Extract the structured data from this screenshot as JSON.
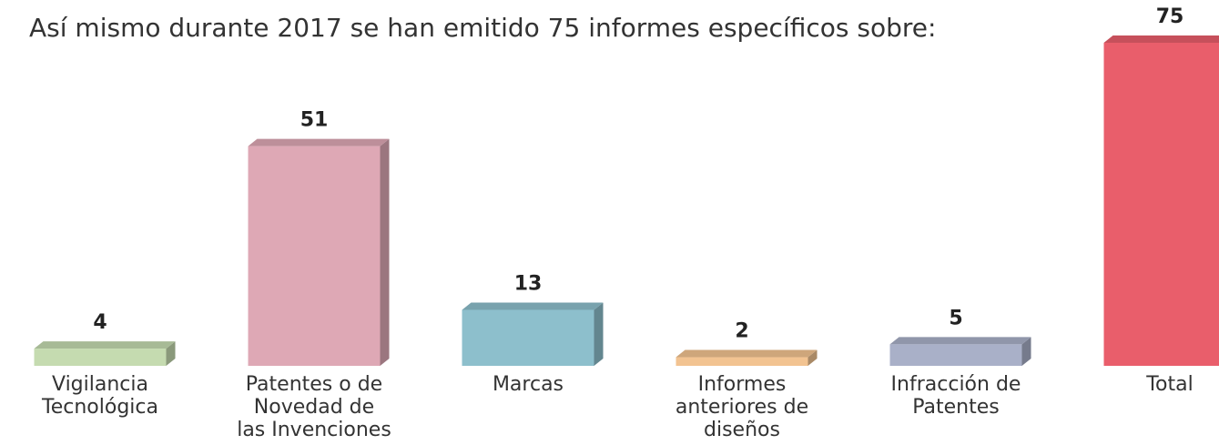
{
  "chart_data": {
    "type": "bar3d",
    "title": "Así mismo durante 2017 se han emitido 75 informes específicos sobre:",
    "categories": [
      "Vigilancia Tecnológica",
      "Patentes o de Novedad de las Invenciones",
      "Marcas",
      "Informes anteriores de diseños",
      "Infracción de Patentes",
      "Total"
    ],
    "values": [
      4,
      51,
      13,
      2,
      5,
      75
    ],
    "colors": [
      "#c5dbb0",
      "#dea8b5",
      "#8dbfcc",
      "#f2c391",
      "#a9b0c8",
      "#e95e6b"
    ]
  }
}
